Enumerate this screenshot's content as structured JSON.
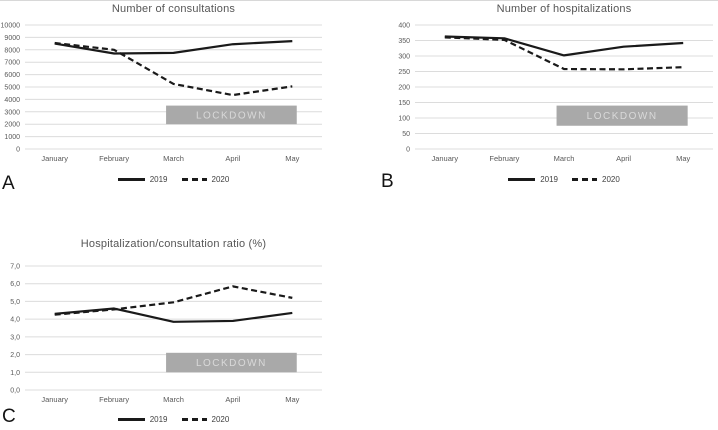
{
  "figure": {
    "panels": [
      {
        "letter": "A"
      },
      {
        "letter": "B"
      },
      {
        "letter": "C"
      }
    ]
  },
  "colors": {
    "line": "#1a1a1a",
    "gridline": "#dcdcdc",
    "axis_label": "#595959",
    "title": "#565656",
    "lockdown_fill": "#a9a9a9",
    "lockdown_text": "#d9d9d9",
    "background": "#ffffff"
  },
  "chart_data": [
    {
      "type": "line",
      "title": "Number of consultations",
      "categories": [
        "January",
        "February",
        "March",
        "April",
        "May"
      ],
      "series": [
        {
          "name": "2019",
          "style": "solid",
          "values": [
            8500,
            7700,
            7750,
            8450,
            8700
          ]
        },
        {
          "name": "2020",
          "style": "dashed",
          "values": [
            8550,
            8000,
            5250,
            4350,
            5050
          ]
        }
      ],
      "ylim": [
        0,
        10000
      ],
      "yticks": [
        "0",
        "1000",
        "2000",
        "3000",
        "4000",
        "5000",
        "6000",
        "7000",
        "8000",
        "9000",
        "10000"
      ],
      "grid": true,
      "legend_position": "bottom",
      "annotation": {
        "label": "LOCKDOWN",
        "y0": 2000,
        "y1": 3500,
        "x_span": "March-May"
      }
    },
    {
      "type": "line",
      "title": "Number of hospitalizations",
      "categories": [
        "January",
        "February",
        "March",
        "April",
        "May"
      ],
      "series": [
        {
          "name": "2019",
          "style": "solid",
          "values": [
            363,
            357,
            302,
            330,
            342
          ]
        },
        {
          "name": "2020",
          "style": "dashed",
          "values": [
            360,
            352,
            258,
            257,
            264
          ]
        }
      ],
      "ylim": [
        0,
        400
      ],
      "yticks": [
        "0",
        "50",
        "100",
        "150",
        "200",
        "250",
        "300",
        "350",
        "400"
      ],
      "grid": true,
      "legend_position": "bottom",
      "annotation": {
        "label": "LOCKDOWN",
        "y0": 75,
        "y1": 140,
        "x_span": "March-May"
      }
    },
    {
      "type": "line",
      "title": "Hospitalization/consultation ratio (%)",
      "categories": [
        "January",
        "February",
        "March",
        "April",
        "May"
      ],
      "series": [
        {
          "name": "2019",
          "style": "solid",
          "values": [
            4.3,
            4.6,
            3.85,
            3.9,
            4.35
          ]
        },
        {
          "name": "2020",
          "style": "dashed",
          "values": [
            4.25,
            4.55,
            4.95,
            5.85,
            5.2
          ]
        }
      ],
      "ylim": [
        0,
        7
      ],
      "yticks": [
        "0,0",
        "1,0",
        "2,0",
        "3,0",
        "4,0",
        "5,0",
        "6,0",
        "7,0"
      ],
      "grid": true,
      "legend_position": "bottom",
      "annotation": {
        "label": "LOCKDOWN",
        "y0": 1.0,
        "y1": 2.1,
        "x_span": "March-May"
      }
    }
  ]
}
